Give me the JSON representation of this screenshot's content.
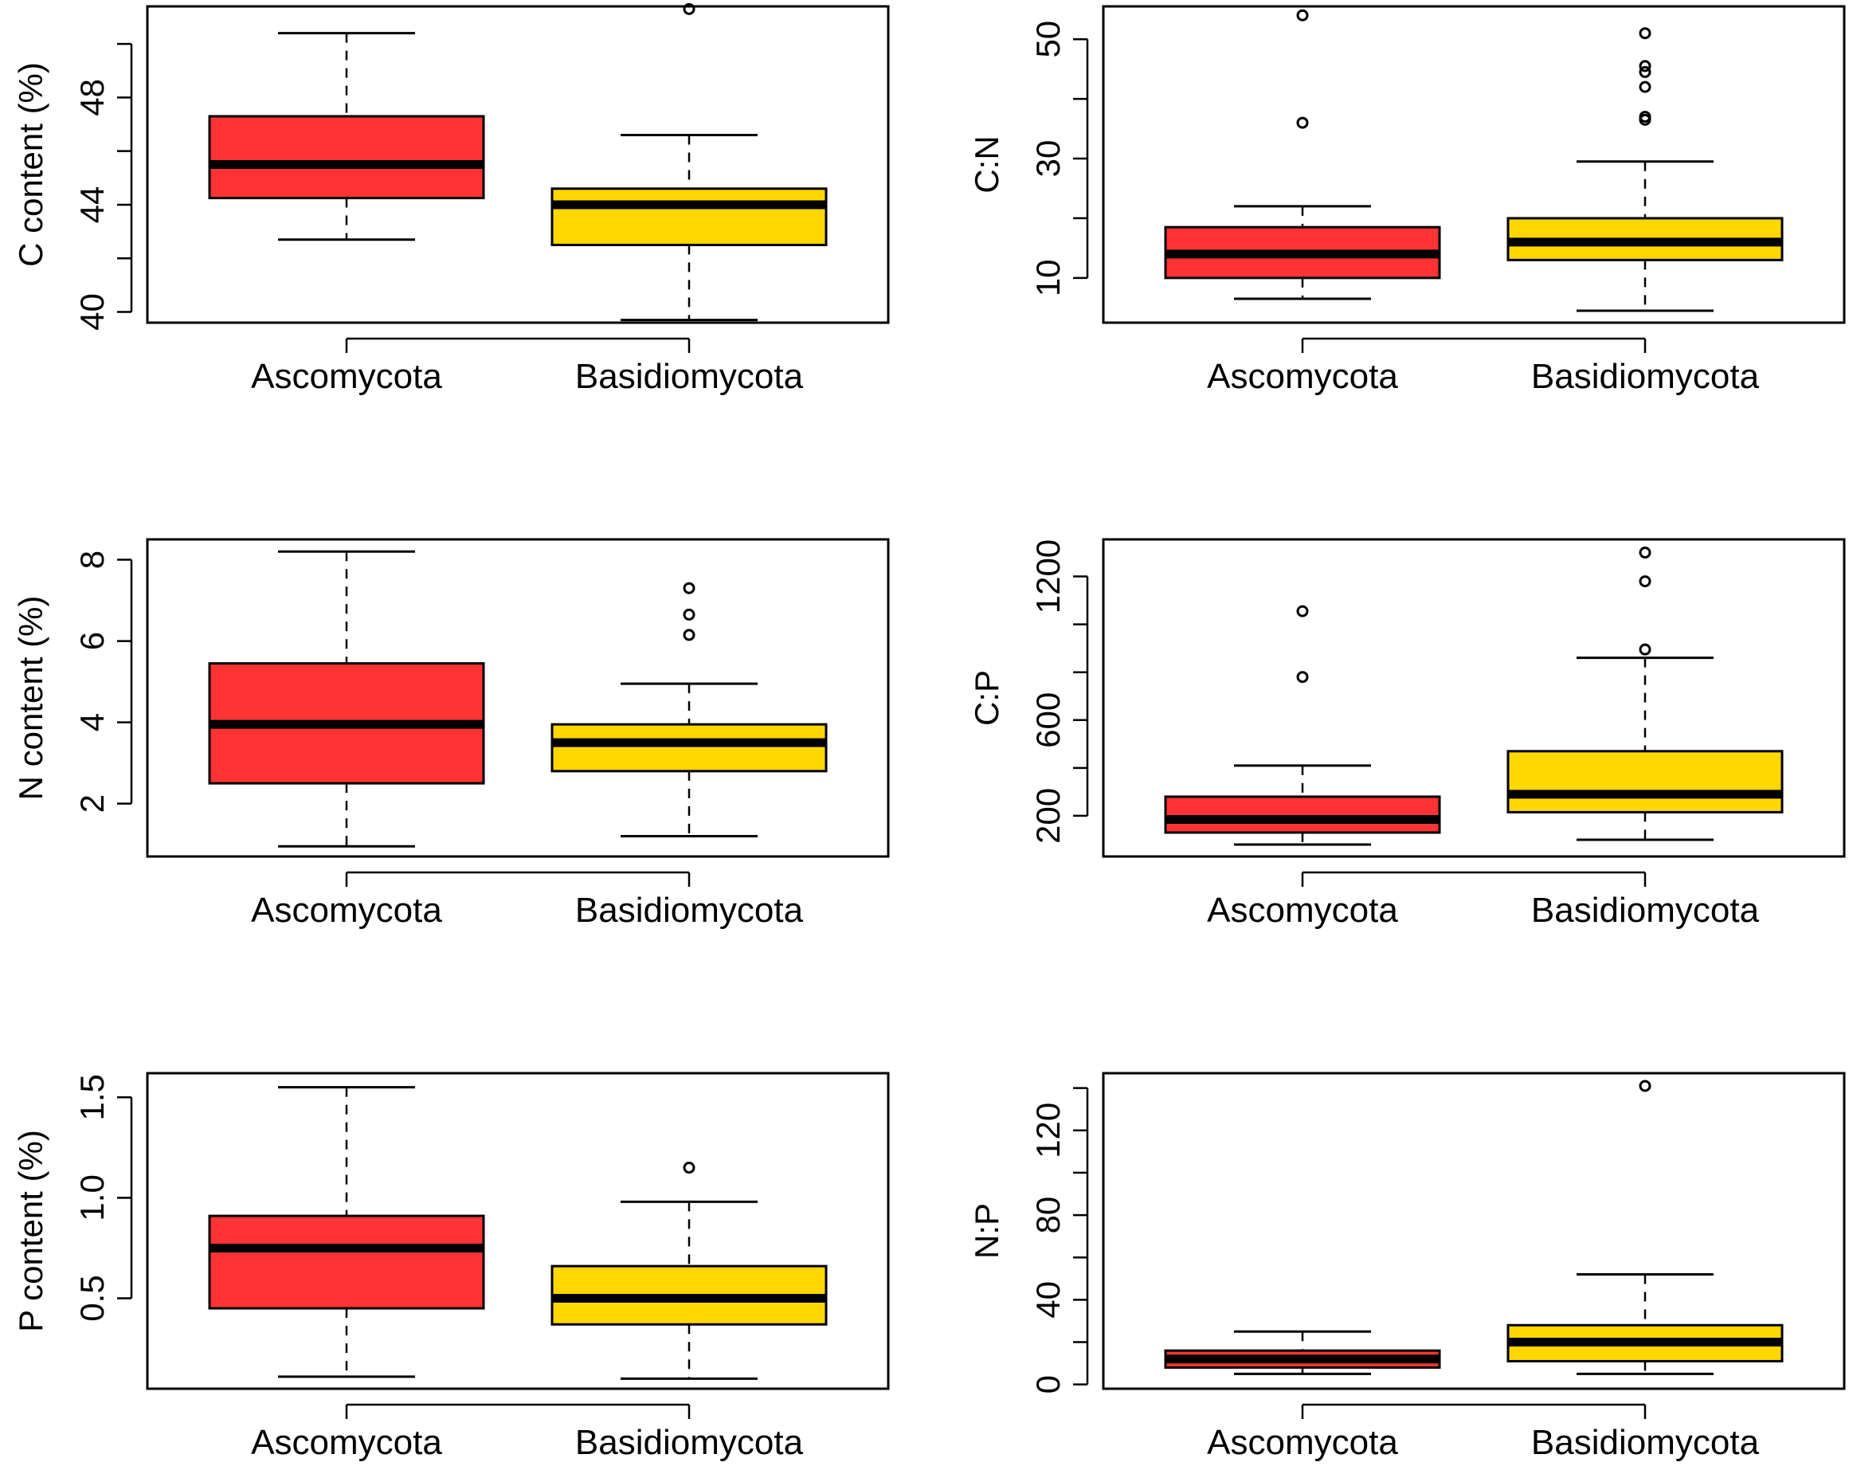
{
  "colors": {
    "Ascomycota": "#ff3333",
    "Basidiomycota": "#ffd700",
    "line": "#000000"
  },
  "chart_data": [
    {
      "type": "boxplot",
      "ylabel": "C content (%)",
      "ylim": [
        39.6,
        51.4
      ],
      "yticks": [
        40,
        44,
        48
      ],
      "minor_ticks": [
        42,
        46,
        50
      ],
      "categories": [
        "Ascomycota",
        "Basidiomycota"
      ],
      "boxes": [
        {
          "whisker_low": 42.7,
          "q1": 44.25,
          "median": 45.5,
          "q3": 47.3,
          "whisker_high": 50.4,
          "outliers": []
        },
        {
          "whisker_low": 39.7,
          "q1": 42.5,
          "median": 44.0,
          "q3": 44.6,
          "whisker_high": 46.6,
          "outliers": [
            51.3
          ]
        }
      ]
    },
    {
      "type": "boxplot",
      "ylabel": "C:N",
      "ylim": [
        2.5,
        55.5
      ],
      "yticks": [
        10,
        30,
        50
      ],
      "minor_ticks": [
        20,
        40
      ],
      "categories": [
        "Ascomycota",
        "Basidiomycota"
      ],
      "boxes": [
        {
          "whisker_low": 6.5,
          "q1": 10.0,
          "median": 14.0,
          "q3": 18.5,
          "whisker_high": 22.0,
          "outliers": [
            36.0,
            54.0
          ]
        },
        {
          "whisker_low": 4.5,
          "q1": 13.0,
          "median": 16.0,
          "q3": 20.0,
          "whisker_high": 29.5,
          "outliers": [
            36.5,
            37.0,
            42.0,
            44.5,
            45.5,
            51.0
          ]
        }
      ]
    },
    {
      "type": "boxplot",
      "ylabel": "N content (%)",
      "ylim": [
        0.7,
        8.5
      ],
      "yticks": [
        2,
        4,
        6,
        8
      ],
      "minor_ticks": [],
      "categories": [
        "Ascomycota",
        "Basidiomycota"
      ],
      "boxes": [
        {
          "whisker_low": 0.95,
          "q1": 2.5,
          "median": 3.95,
          "q3": 5.45,
          "whisker_high": 8.2,
          "outliers": []
        },
        {
          "whisker_low": 1.2,
          "q1": 2.8,
          "median": 3.5,
          "q3": 3.95,
          "whisker_high": 4.95,
          "outliers": [
            6.15,
            6.65,
            7.3
          ]
        }
      ]
    },
    {
      "type": "boxplot",
      "ylabel": "C:P",
      "ylim": [
        30,
        1355
      ],
      "yticks": [
        200,
        600,
        1200
      ],
      "minor_ticks": [
        400,
        800,
        1000
      ],
      "categories": [
        "Ascomycota",
        "Basidiomycota"
      ],
      "boxes": [
        {
          "whisker_low": 80,
          "q1": 130,
          "median": 185,
          "q3": 280,
          "whisker_high": 410,
          "outliers": [
            780,
            1055
          ]
        },
        {
          "whisker_low": 100,
          "q1": 215,
          "median": 290,
          "q3": 470,
          "whisker_high": 860,
          "outliers": [
            895,
            1180,
            1300
          ]
        }
      ]
    },
    {
      "type": "boxplot",
      "ylabel": "P content (%)",
      "ylim": [
        0.05,
        1.62
      ],
      "yticks": [
        0.5,
        1.0,
        1.5
      ],
      "tick_labels": [
        "0.5",
        "1.0",
        "1.5"
      ],
      "minor_ticks": [],
      "categories": [
        "Ascomycota",
        "Basidiomycota"
      ],
      "boxes": [
        {
          "whisker_low": 0.11,
          "q1": 0.45,
          "median": 0.75,
          "q3": 0.91,
          "whisker_high": 1.55,
          "outliers": []
        },
        {
          "whisker_low": 0.1,
          "q1": 0.37,
          "median": 0.5,
          "q3": 0.66,
          "whisker_high": 0.98,
          "outliers": [
            1.15
          ]
        }
      ]
    },
    {
      "type": "boxplot",
      "ylabel": "N:P",
      "ylim": [
        -2,
        147
      ],
      "yticks": [
        0,
        40,
        80,
        120
      ],
      "minor_ticks": [
        20,
        60,
        100,
        140
      ],
      "categories": [
        "Ascomycota",
        "Basidiomycota"
      ],
      "boxes": [
        {
          "whisker_low": 5,
          "q1": 8,
          "median": 12,
          "q3": 16,
          "whisker_high": 25,
          "outliers": []
        },
        {
          "whisker_low": 5,
          "q1": 11,
          "median": 20,
          "q3": 28,
          "whisker_high": 52,
          "outliers": [
            141
          ]
        }
      ]
    }
  ]
}
